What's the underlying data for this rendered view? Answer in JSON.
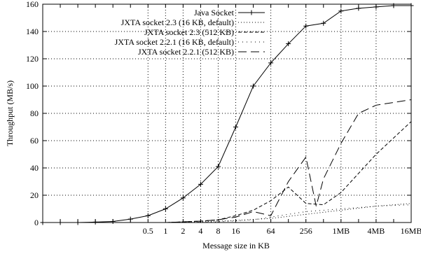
{
  "chart_data": {
    "type": "line",
    "xlabel": "Message size in KB",
    "ylabel": "Throughput (MB/s)",
    "ylim": [
      0,
      160
    ],
    "x_scale": "log2",
    "x_range_kb": [
      0.0078125,
      16384
    ],
    "y_ticks": [
      0,
      20,
      40,
      60,
      80,
      100,
      120,
      140,
      160
    ],
    "x_ticks": [
      {
        "kb": 0.5,
        "label": "0.5"
      },
      {
        "kb": 1,
        "label": "1"
      },
      {
        "kb": 2,
        "label": "2"
      },
      {
        "kb": 4,
        "label": "4"
      },
      {
        "kb": 8,
        "label": "8"
      },
      {
        "kb": 16,
        "label": "16"
      },
      {
        "kb": 64,
        "label": "64"
      },
      {
        "kb": 256,
        "label": "256"
      },
      {
        "kb": 1024,
        "label": "1MB"
      },
      {
        "kb": 4096,
        "label": "4MB"
      },
      {
        "kb": 16384,
        "label": "16MB"
      }
    ],
    "grid": true,
    "legend_position": "top-center",
    "series": [
      {
        "name": "Java Socket",
        "dash": "solid",
        "marker": "plus",
        "points": [
          [
            0.0078125,
            0
          ],
          [
            0.015625,
            0
          ],
          [
            0.03125,
            0
          ],
          [
            0.0625,
            0.3
          ],
          [
            0.125,
            0.8
          ],
          [
            0.25,
            2.5
          ],
          [
            0.5,
            5
          ],
          [
            1,
            10
          ],
          [
            2,
            18
          ],
          [
            4,
            28
          ],
          [
            8,
            41
          ],
          [
            16,
            70
          ],
          [
            32,
            100
          ],
          [
            64,
            117
          ],
          [
            128,
            131
          ],
          [
            256,
            144
          ],
          [
            512,
            146
          ],
          [
            1024,
            155
          ],
          [
            2048,
            157
          ],
          [
            4096,
            158
          ],
          [
            8192,
            159
          ],
          [
            16384,
            159
          ]
        ]
      },
      {
        "name": "JXTA socket 2.3 (16 KB, default)",
        "dash": "1,3",
        "marker": "none",
        "points": [
          [
            0.0078125,
            0
          ],
          [
            1,
            0
          ],
          [
            4,
            0.5
          ],
          [
            16,
            1.5
          ],
          [
            64,
            3
          ],
          [
            256,
            6
          ],
          [
            1024,
            9
          ],
          [
            4096,
            12
          ],
          [
            16384,
            14
          ]
        ]
      },
      {
        "name": "JXTA socket 2.3 (512 KB)",
        "dash": "5,3",
        "marker": "none",
        "points": [
          [
            0.0078125,
            0
          ],
          [
            1,
            0
          ],
          [
            4,
            1
          ],
          [
            8,
            2
          ],
          [
            16,
            5
          ],
          [
            32,
            9
          ],
          [
            64,
            16
          ],
          [
            128,
            26
          ],
          [
            256,
            14
          ],
          [
            512,
            13
          ],
          [
            1024,
            22
          ],
          [
            2048,
            36
          ],
          [
            4096,
            50
          ],
          [
            8192,
            62
          ],
          [
            16384,
            74
          ]
        ]
      },
      {
        "name": "JXTA socket 2.2.1 (16 KB, default)",
        "dash": "1,5",
        "marker": "none",
        "points": [
          [
            0.0078125,
            0
          ],
          [
            1,
            0
          ],
          [
            8,
            0.5
          ],
          [
            32,
            2
          ],
          [
            64,
            4
          ],
          [
            128,
            6
          ],
          [
            256,
            8
          ],
          [
            1024,
            10
          ],
          [
            4096,
            12
          ],
          [
            16384,
            13
          ]
        ]
      },
      {
        "name": "JXTA socket 2.2.1 (512 KB)",
        "dash": "12,6",
        "marker": "none",
        "points": [
          [
            0.0078125,
            0
          ],
          [
            1,
            0
          ],
          [
            4,
            1
          ],
          [
            8,
            2
          ],
          [
            16,
            4
          ],
          [
            32,
            8
          ],
          [
            64,
            5
          ],
          [
            128,
            30
          ],
          [
            256,
            48
          ],
          [
            384,
            12
          ],
          [
            512,
            32
          ],
          [
            1024,
            58
          ],
          [
            2048,
            80
          ],
          [
            4096,
            86
          ],
          [
            8192,
            88
          ],
          [
            16384,
            90
          ]
        ]
      }
    ]
  }
}
